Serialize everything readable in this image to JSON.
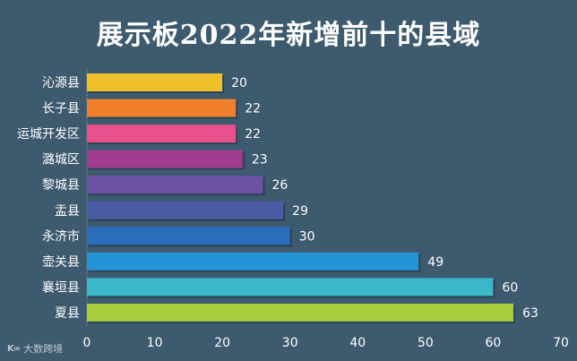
{
  "chart_data": {
    "type": "bar",
    "orientation": "horizontal",
    "title": "展示板2022年新增前十的县域",
    "categories": [
      "沁源县",
      "长子县",
      "运城开发区",
      "潞城区",
      "黎城县",
      "盂县",
      "永济市",
      "壶关县",
      "襄垣县",
      "夏县"
    ],
    "values": [
      20,
      22,
      22,
      23,
      26,
      29,
      30,
      49,
      60,
      63
    ],
    "colors": [
      "#f0c02a",
      "#f07f2b",
      "#e8508c",
      "#a03c8e",
      "#6a52a0",
      "#4a5ca4",
      "#2a6dbb",
      "#2393d6",
      "#3ab7c9",
      "#a9cc3d"
    ],
    "xlim": [
      0,
      70
    ],
    "xticks": [
      0,
      10,
      20,
      30,
      40,
      50,
      60,
      70
    ],
    "xlabel": "",
    "ylabel": "",
    "grid": false,
    "legend": false
  },
  "watermark": {
    "text": "大数跨境"
  }
}
